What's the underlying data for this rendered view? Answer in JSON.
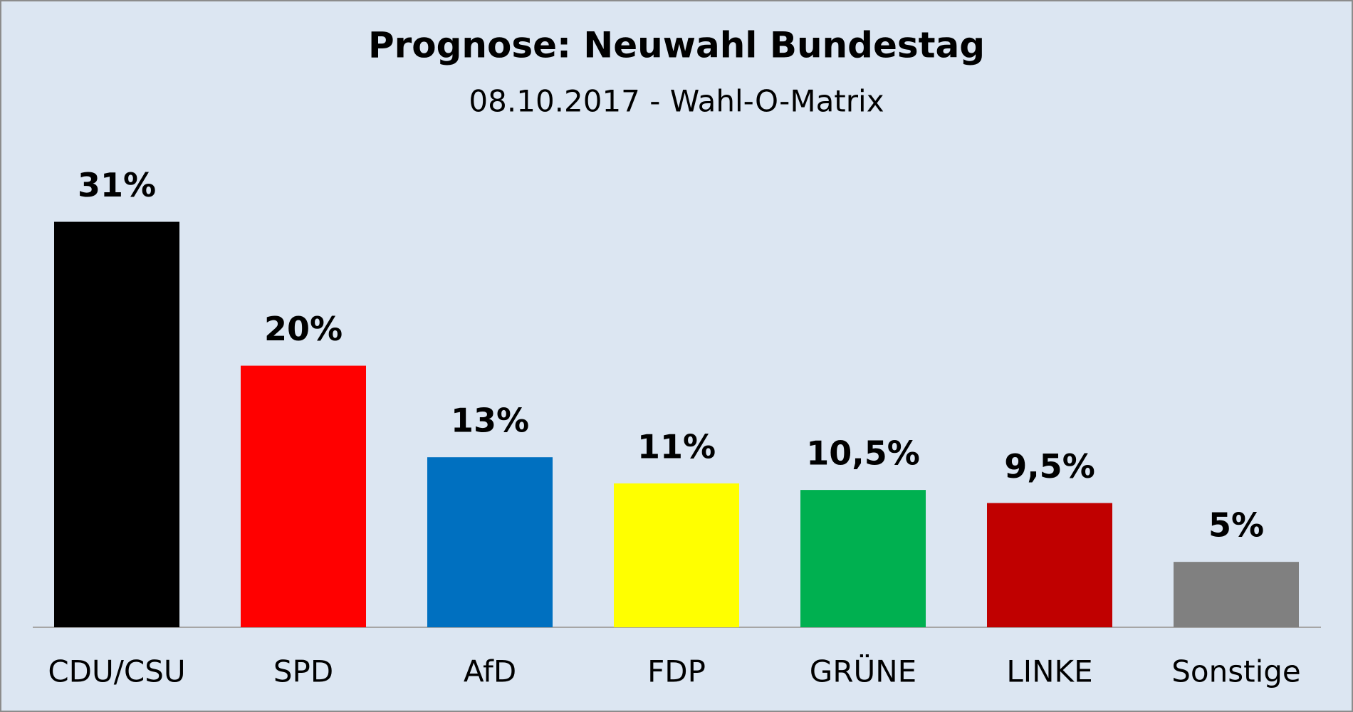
{
  "chart_data": {
    "type": "bar",
    "title": "Prognose: Neuwahl Bundestag",
    "subtitle": "08.10.2017 - Wahl-O-Matrix",
    "categories": [
      "CDU/CSU",
      "SPD",
      "AfD",
      "FDP",
      "GRÜNE",
      "LINKE",
      "Sonstige"
    ],
    "values": [
      31,
      20,
      13,
      11,
      10.5,
      9.5,
      5
    ],
    "value_labels": [
      "31%",
      "20%",
      "13%",
      "11%",
      "10,5%",
      "9,5%",
      "5%"
    ],
    "colors": [
      "#000000",
      "#ff0000",
      "#0070c0",
      "#ffff00",
      "#00b050",
      "#c00000",
      "#808080"
    ]
  }
}
